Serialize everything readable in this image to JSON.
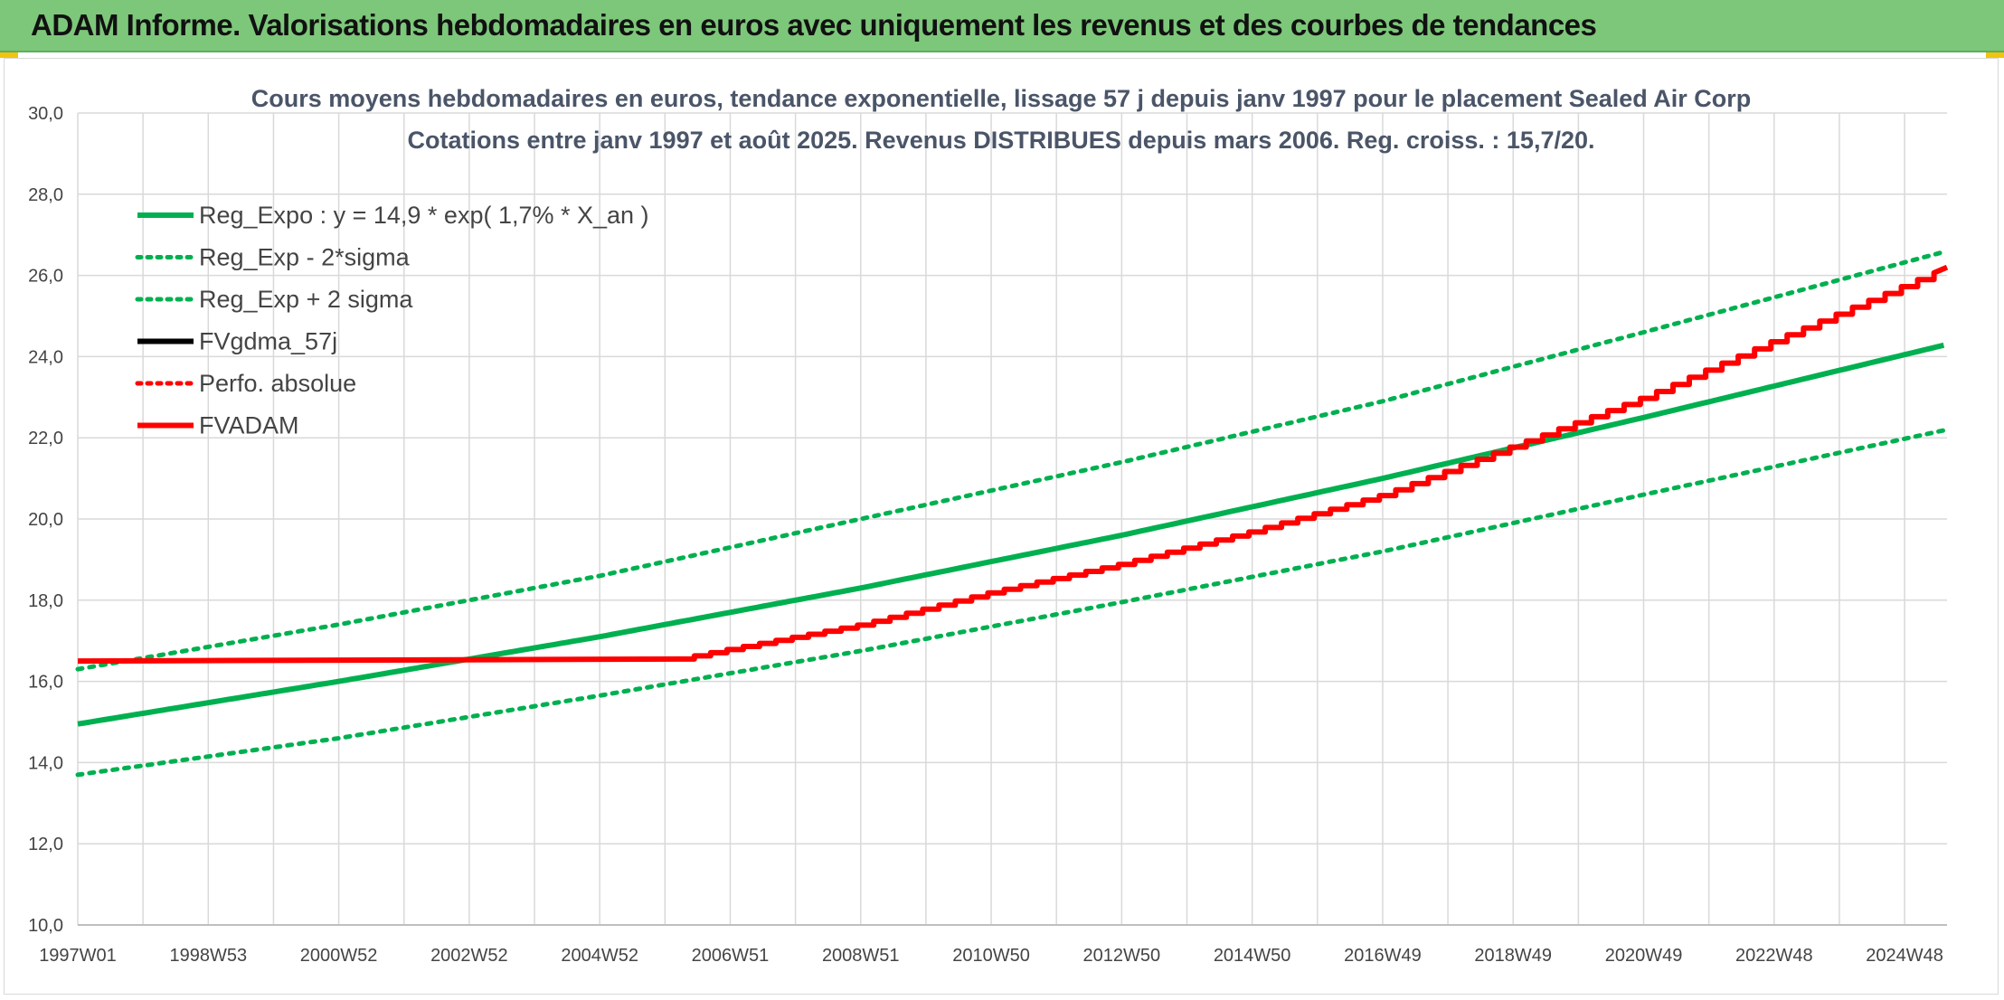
{
  "banner": {
    "title": "ADAM Informe. Valorisations hebdomadaires en euros avec uniquement les revenus et des courbes de tendances"
  },
  "colors": {
    "banner_bg": "#7dc77a",
    "green_line": "#00b050",
    "red_line": "#ff0000",
    "black_line": "#000000",
    "grid": "#d9d9d9"
  },
  "chart_data": {
    "type": "line",
    "title_lines": [
      "Cours moyens hebdomadaires en euros, tendance exponentielle, lissage 57 j depuis janv 1997 pour le placement Sealed Air Corp",
      "Cotations entre janv 1997 et août 2025. Revenus DISTRIBUES depuis mars 2006. Reg. croiss. : 15,7/20."
    ],
    "x_tick_labels": [
      "1997W01",
      "1998W53",
      "2000W52",
      "2002W52",
      "2004W52",
      "2006W51",
      "2008W51",
      "2010W50",
      "2012W50",
      "2014W50",
      "2016W49",
      "2018W49",
      "2020W49",
      "2022W48",
      "2024W48"
    ],
    "x_tick_years": [
      1997.0,
      1999.0,
      2001.0,
      2003.0,
      2005.0,
      2007.0,
      2009.0,
      2011.0,
      2013.0,
      2015.0,
      2017.0,
      2019.0,
      2021.0,
      2023.0,
      2025.0
    ],
    "xlim": [
      1997.0,
      2025.65
    ],
    "ylim": [
      10,
      30
    ],
    "y_ticks": [
      "10,0",
      "12,0",
      "14,0",
      "16,0",
      "18,0",
      "20,0",
      "22,0",
      "24,0",
      "26,0",
      "28,0",
      "30,0"
    ],
    "y_tick_values": [
      10,
      12,
      14,
      16,
      18,
      20,
      22,
      24,
      26,
      28,
      30
    ],
    "grid": true,
    "legend_position": "top-left",
    "legend": [
      {
        "label": "Reg_Expo : y = 14,9 * exp( 1,7% *  X_an )",
        "color": "#00b050",
        "style": "solid"
      },
      {
        "label": "Reg_Exp - 2*sigma",
        "color": "#00b050",
        "style": "dotted"
      },
      {
        "label": "Reg_Exp + 2 sigma",
        "color": "#00b050",
        "style": "dotted"
      },
      {
        "label": "FVgdma_57j",
        "color": "#000000",
        "style": "solid"
      },
      {
        "label": "Perfo. absolue",
        "color": "#ff0000",
        "style": "dotted"
      },
      {
        "label": "FVADAM",
        "color": "#ff0000",
        "style": "solid"
      }
    ],
    "series": [
      {
        "name": "Reg_Expo : y = 14,9 * exp( 1,7% *  X_an )",
        "color": "#00b050",
        "style": "solid",
        "x": [
          1997.0,
          2001.0,
          2005.0,
          2009.0,
          2013.0,
          2017.0,
          2021.0,
          2025.65
        ],
        "y": [
          14.95,
          16.0,
          17.1,
          18.3,
          19.6,
          21.0,
          22.5,
          24.3
        ]
      },
      {
        "name": "Reg_Exp - 2*sigma",
        "color": "#00b050",
        "style": "dotted",
        "x": [
          1997.0,
          2001.0,
          2005.0,
          2009.0,
          2013.0,
          2017.0,
          2021.0,
          2025.65
        ],
        "y": [
          13.7,
          14.6,
          15.65,
          16.75,
          17.95,
          19.2,
          20.6,
          22.2
        ]
      },
      {
        "name": "Reg_Exp + 2 sigma",
        "color": "#00b050",
        "style": "dotted",
        "x": [
          1997.0,
          2001.0,
          2005.0,
          2009.0,
          2013.0,
          2017.0,
          2021.0,
          2025.65
        ],
        "y": [
          16.3,
          17.4,
          18.6,
          20.0,
          21.4,
          22.9,
          24.6,
          26.6
        ]
      },
      {
        "name": "FVADAM",
        "color": "#ff0000",
        "style": "solid",
        "x": [
          1997.0,
          2006.2,
          2007.0,
          2009.0,
          2011.0,
          2013.0,
          2015.0,
          2017.0,
          2019.0,
          2021.0,
          2023.0,
          2025.65
        ],
        "y": [
          16.5,
          16.55,
          16.8,
          17.4,
          18.2,
          18.9,
          19.7,
          20.6,
          21.8,
          23.0,
          24.4,
          26.2
        ]
      }
    ]
  }
}
